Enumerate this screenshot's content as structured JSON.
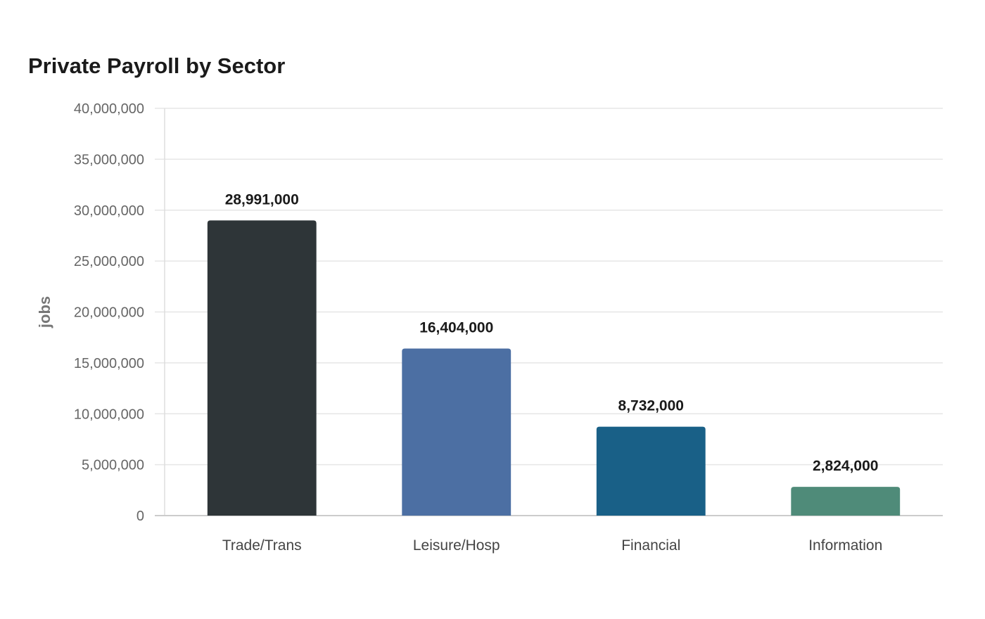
{
  "chart_data": {
    "type": "bar",
    "title": "Private Payroll by Sector",
    "xlabel": "",
    "ylabel": "jobs",
    "categories": [
      "Trade/Trans",
      "Leisure/Hosp",
      "Financial",
      "Information"
    ],
    "values": [
      28991000,
      16404000,
      8732000,
      2824000
    ],
    "data_labels": [
      "28,991,000",
      "16,404,000",
      "8,732,000",
      "2,824,000"
    ],
    "colors": [
      "#2e3538",
      "#4c6fa3",
      "#196087",
      "#4f8b79"
    ],
    "ylim": [
      0,
      40000000
    ],
    "yticks": [
      0,
      5000000,
      10000000,
      15000000,
      20000000,
      25000000,
      30000000,
      35000000,
      40000000
    ],
    "ytick_labels": [
      "0",
      "5,000,000",
      "10,000,000",
      "15,000,000",
      "20,000,000",
      "25,000,000",
      "30,000,000",
      "35,000,000",
      "40,000,000"
    ],
    "grid": true,
    "legend": "none"
  }
}
